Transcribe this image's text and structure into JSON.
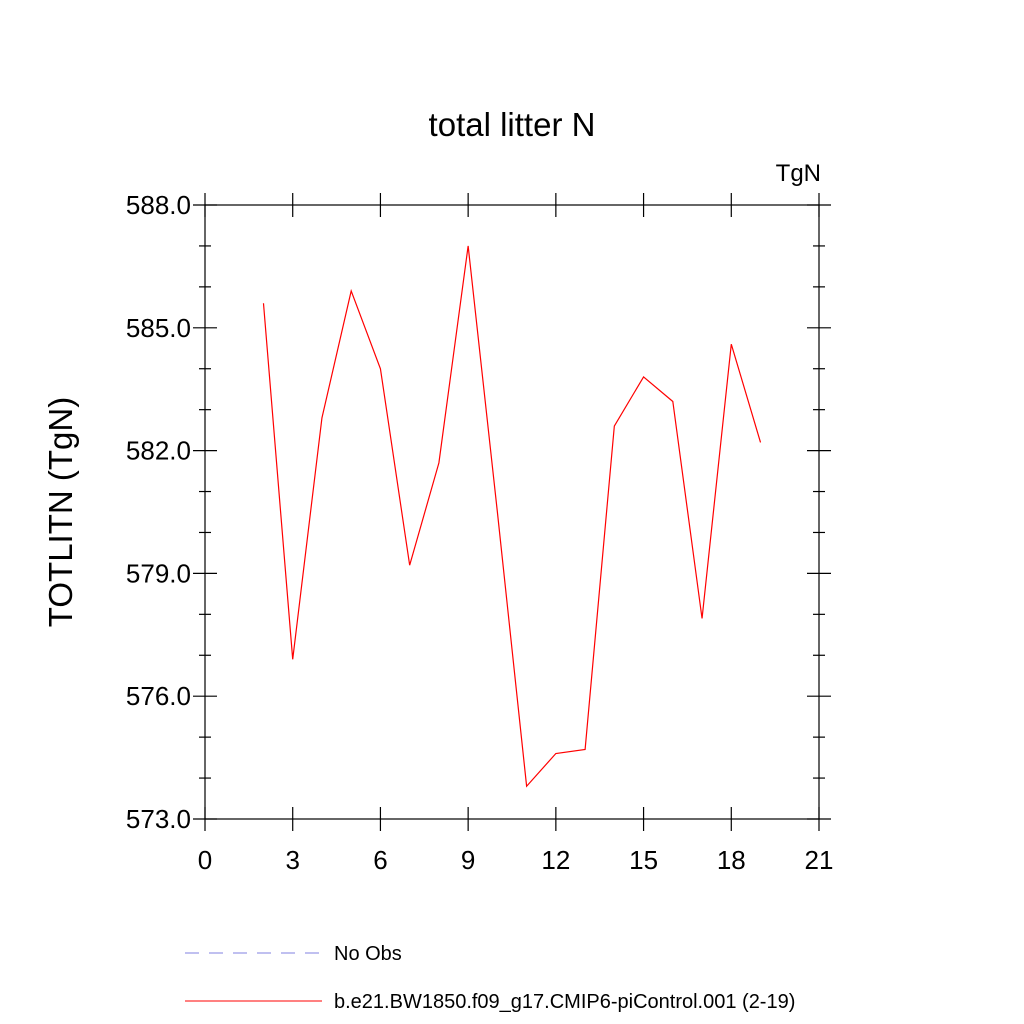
{
  "chart_data": {
    "type": "line",
    "title": "total litter N",
    "units_label": "TgN",
    "ylabel": "TOTLITN  (TgN)",
    "xlabel": "",
    "xlim": [
      0,
      21
    ],
    "ylim": [
      573.0,
      588.0
    ],
    "x_ticks": [
      "0",
      "3",
      "6",
      "9",
      "12",
      "15",
      "18",
      "21"
    ],
    "y_ticks": [
      "573.0",
      "576.0",
      "579.0",
      "582.0",
      "585.0",
      "588.0"
    ],
    "grid": false,
    "legend_placement": "bottom",
    "series": [
      {
        "name": "No Obs",
        "style": "dashed",
        "color": "#8080e0",
        "x": [],
        "values": []
      },
      {
        "name": "b.e21.BW1850.f09_g17.CMIP6-piControl.001 (2-19)",
        "style": "solid",
        "color": "#ff0000",
        "x": [
          2,
          3,
          4,
          5,
          6,
          7,
          8,
          9,
          10,
          11,
          12,
          13,
          14,
          15,
          16,
          17,
          18,
          19
        ],
        "values": [
          585.6,
          576.9,
          582.8,
          585.9,
          584.0,
          579.2,
          581.7,
          587.0,
          580.5,
          573.8,
          574.6,
          574.7,
          582.6,
          583.8,
          583.2,
          577.9,
          584.6,
          582.2
        ]
      }
    ]
  }
}
